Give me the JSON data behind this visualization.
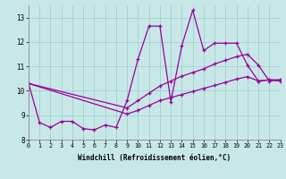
{
  "xlabel": "Windchill (Refroidissement éolien,°C)",
  "background_color": "#c8e8e8",
  "line_color": "#990099",
  "grid_color": "#99cccc",
  "xlim": [
    0,
    23
  ],
  "ylim": [
    8,
    13.5
  ],
  "yticks": [
    8,
    9,
    10,
    11,
    12,
    13
  ],
  "xticks": [
    0,
    1,
    2,
    3,
    4,
    5,
    6,
    7,
    8,
    9,
    10,
    11,
    12,
    13,
    14,
    15,
    16,
    17,
    18,
    19,
    20,
    21,
    22,
    23
  ],
  "series1_x": [
    0,
    1,
    2,
    3,
    4,
    5,
    6,
    7,
    8,
    9,
    10,
    11,
    12,
    13,
    14,
    15,
    16,
    17,
    18,
    19,
    20,
    21,
    22,
    23
  ],
  "series1_y": [
    10.3,
    8.7,
    8.5,
    8.75,
    8.75,
    8.45,
    8.4,
    8.6,
    8.5,
    9.6,
    11.3,
    12.65,
    12.65,
    9.55,
    11.85,
    13.3,
    11.65,
    11.95,
    11.95,
    11.95,
    11.05,
    10.4,
    10.45,
    10.4
  ],
  "series2_x": [
    0,
    9,
    10,
    11,
    12,
    13,
    14,
    15,
    16,
    17,
    18,
    19,
    20,
    21,
    22,
    23
  ],
  "series2_y": [
    10.3,
    9.3,
    9.6,
    9.9,
    10.2,
    10.4,
    10.6,
    10.75,
    10.9,
    11.1,
    11.25,
    11.4,
    11.5,
    11.05,
    10.4,
    10.45
  ],
  "series3_x": [
    0,
    9,
    10,
    11,
    12,
    13,
    14,
    15,
    16,
    17,
    18,
    19,
    20,
    21,
    22,
    23
  ],
  "series3_y": [
    10.3,
    9.05,
    9.2,
    9.4,
    9.6,
    9.72,
    9.85,
    9.97,
    10.1,
    10.22,
    10.35,
    10.48,
    10.58,
    10.4,
    10.45,
    10.45
  ]
}
